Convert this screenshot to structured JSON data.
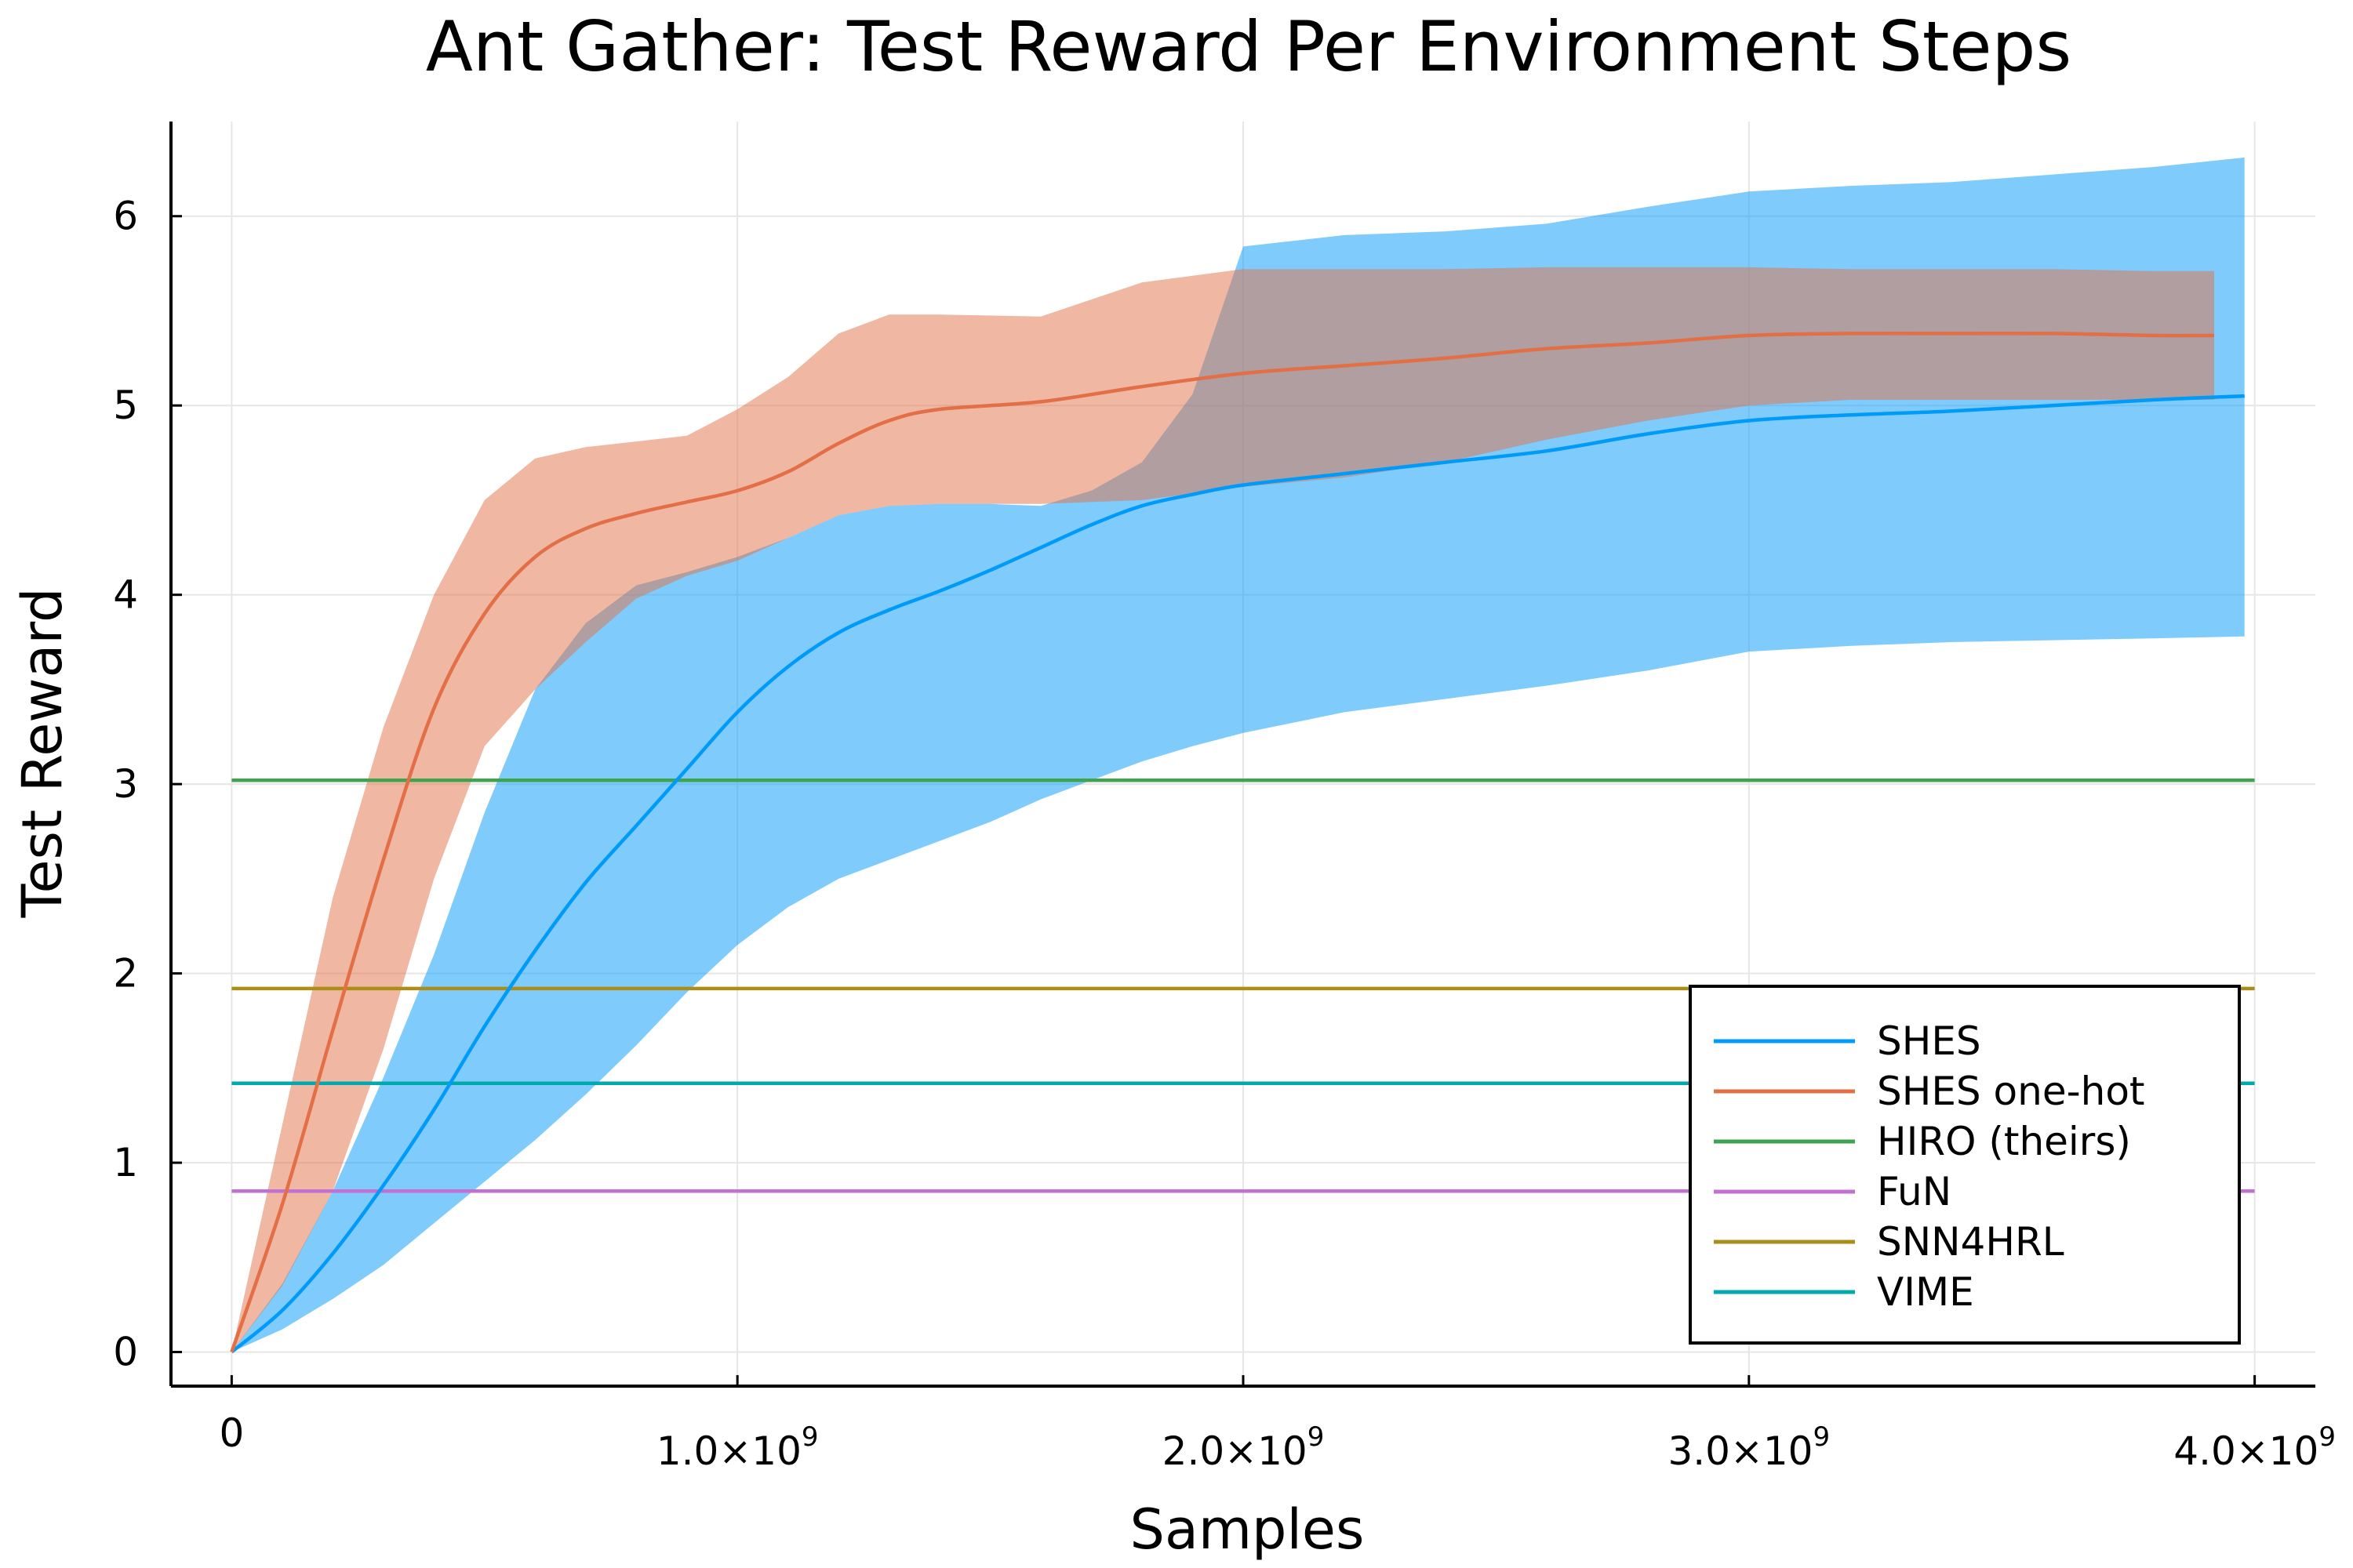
{
  "chart_data": {
    "type": "line",
    "title": "Ant Gather: Test Reward Per Environment Steps",
    "xlabel": "Samples",
    "ylabel": "Test Reward",
    "xlim": [
      -120000000,
      4120000000
    ],
    "ylim": [
      -0.18,
      6.5
    ],
    "x_ticks": [
      {
        "value": 0,
        "mantissa": "0",
        "exponent": ""
      },
      {
        "value": 1000000000,
        "mantissa": "1.0×10",
        "exponent": "9"
      },
      {
        "value": 2000000000,
        "mantissa": "2.0×10",
        "exponent": "9"
      },
      {
        "value": 3000000000,
        "mantissa": "3.0×10",
        "exponent": "9"
      },
      {
        "value": 4000000000,
        "mantissa": "4.0×10",
        "exponent": "9"
      }
    ],
    "y_ticks": [
      {
        "value": 0,
        "label": "0"
      },
      {
        "value": 1,
        "label": "1"
      },
      {
        "value": 2,
        "label": "2"
      },
      {
        "value": 3,
        "label": "3"
      },
      {
        "value": 4,
        "label": "4"
      },
      {
        "value": 5,
        "label": "5"
      },
      {
        "value": 6,
        "label": "6"
      }
    ],
    "grid": true,
    "legend_position": "bottom-right",
    "series": [
      {
        "name": "SHES",
        "color": "#009af9",
        "x": [
          0,
          100000000,
          200000000,
          300000000,
          400000000,
          500000000,
          600000000,
          700000000,
          800000000,
          900000000,
          1000000000,
          1100000000,
          1200000000,
          1300000000,
          1400000000,
          1500000000,
          1600000000,
          1700000000,
          1800000000,
          1900000000,
          2000000000,
          2200000000,
          2400000000,
          2600000000,
          2800000000,
          3000000000,
          3200000000,
          3400000000,
          3600000000,
          3800000000,
          3980000000
        ],
        "values": [
          0,
          0.22,
          0.52,
          0.88,
          1.28,
          1.72,
          2.12,
          2.48,
          2.78,
          3.08,
          3.38,
          3.62,
          3.8,
          3.92,
          4.02,
          4.13,
          4.25,
          4.37,
          4.47,
          4.53,
          4.58,
          4.64,
          4.7,
          4.76,
          4.85,
          4.92,
          4.95,
          4.97,
          5.0,
          5.03,
          5.05
        ],
        "lower": [
          0,
          0.12,
          0.28,
          0.46,
          0.68,
          0.9,
          1.12,
          1.36,
          1.62,
          1.9,
          2.15,
          2.35,
          2.5,
          2.6,
          2.7,
          2.8,
          2.92,
          3.02,
          3.12,
          3.2,
          3.27,
          3.38,
          3.45,
          3.52,
          3.6,
          3.7,
          3.73,
          3.75,
          3.76,
          3.77,
          3.78
        ],
        "upper": [
          0,
          0.36,
          0.85,
          1.45,
          2.1,
          2.85,
          3.5,
          3.85,
          4.05,
          4.12,
          4.2,
          4.3,
          4.42,
          4.47,
          4.48,
          4.48,
          4.47,
          4.55,
          4.7,
          5.06,
          5.84,
          5.9,
          5.92,
          5.96,
          6.05,
          6.13,
          6.16,
          6.18,
          6.22,
          6.26,
          6.31
        ]
      },
      {
        "name": "SHES one-hot",
        "color": "#e26f46",
        "x": [
          0,
          100000000,
          200000000,
          300000000,
          400000000,
          500000000,
          600000000,
          700000000,
          800000000,
          900000000,
          1000000000,
          1100000000,
          1200000000,
          1300000000,
          1400000000,
          1600000000,
          1800000000,
          2000000000,
          2200000000,
          2400000000,
          2600000000,
          2800000000,
          3000000000,
          3200000000,
          3400000000,
          3600000000,
          3800000000,
          3920000000
        ],
        "values": [
          0,
          0.78,
          1.7,
          2.6,
          3.4,
          3.9,
          4.2,
          4.35,
          4.43,
          4.49,
          4.55,
          4.65,
          4.8,
          4.92,
          4.98,
          5.02,
          5.1,
          5.17,
          5.21,
          5.25,
          5.3,
          5.33,
          5.37,
          5.38,
          5.38,
          5.38,
          5.37,
          5.37
        ],
        "lower": [
          0,
          0.35,
          0.85,
          1.6,
          2.5,
          3.2,
          3.5,
          3.75,
          3.98,
          4.1,
          4.18,
          4.3,
          4.42,
          4.47,
          4.48,
          4.48,
          4.5,
          4.57,
          4.62,
          4.7,
          4.82,
          4.92,
          5.0,
          5.03,
          5.03,
          5.03,
          5.03,
          5.03
        ],
        "upper": [
          0,
          1.2,
          2.4,
          3.3,
          4.0,
          4.5,
          4.72,
          4.78,
          4.81,
          4.84,
          4.98,
          5.15,
          5.38,
          5.48,
          5.48,
          5.47,
          5.65,
          5.72,
          5.72,
          5.72,
          5.73,
          5.73,
          5.73,
          5.72,
          5.72,
          5.72,
          5.71,
          5.71
        ]
      },
      {
        "name": "HIRO (theirs)",
        "color": "#3ea44e",
        "x": [
          0,
          4000000000
        ],
        "values": [
          3.02,
          3.02
        ]
      },
      {
        "name": "FuN",
        "color": "#c271d2",
        "x": [
          0,
          4000000000
        ],
        "values": [
          0.85,
          0.85
        ]
      },
      {
        "name": "SNN4HRL",
        "color": "#ac8d18",
        "x": [
          0,
          4000000000
        ],
        "values": [
          1.92,
          1.92
        ]
      },
      {
        "name": "VIME",
        "color": "#00a9ad",
        "x": [
          0,
          4000000000
        ],
        "values": [
          1.42,
          1.42
        ]
      }
    ]
  }
}
